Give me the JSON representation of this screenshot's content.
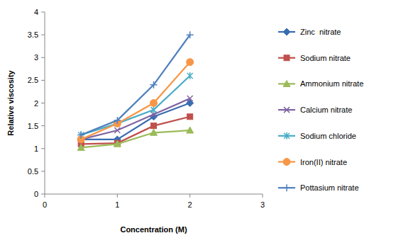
{
  "chart_data": {
    "type": "line",
    "x_label": "Concentration (M)",
    "y_label": "Relative viscosity",
    "x": [
      0.5,
      1,
      1.5,
      2
    ],
    "xlim": [
      0,
      3
    ],
    "xticks": [
      0,
      1,
      2,
      3
    ],
    "ylim": [
      0,
      4
    ],
    "yticks": [
      0,
      0.5,
      1,
      1.5,
      2,
      2.5,
      3,
      3.5,
      4
    ],
    "grid": false,
    "legend": "right",
    "series": [
      {
        "name": "Zinc  nitrate",
        "color": "#3a6cb2",
        "marker": "diamond",
        "values": [
          1.2,
          1.2,
          1.7,
          2.0
        ]
      },
      {
        "name": "Sodium nitrate",
        "color": "#c0504d",
        "marker": "square",
        "values": [
          1.1,
          1.12,
          1.5,
          1.7
        ]
      },
      {
        "name": "Ammonium nitrate",
        "color": "#9bbb59",
        "marker": "triangle",
        "values": [
          1.02,
          1.1,
          1.35,
          1.4
        ]
      },
      {
        "name": "Calcium nitrate",
        "color": "#8064a2",
        "marker": "x",
        "values": [
          1.2,
          1.4,
          1.75,
          2.1
        ]
      },
      {
        "name": "Sodium chloride",
        "color": "#4bacc6",
        "marker": "star",
        "values": [
          1.3,
          1.55,
          1.85,
          2.6
        ]
      },
      {
        "name": "Iron(II) nitrate",
        "color": "#f79646",
        "marker": "circle",
        "values": [
          1.2,
          1.55,
          2.0,
          2.9
        ]
      },
      {
        "name": "Pottasium nitrate",
        "color": "#4f81bd",
        "marker": "plus",
        "values": [
          1.3,
          1.62,
          2.4,
          3.5
        ]
      }
    ]
  }
}
